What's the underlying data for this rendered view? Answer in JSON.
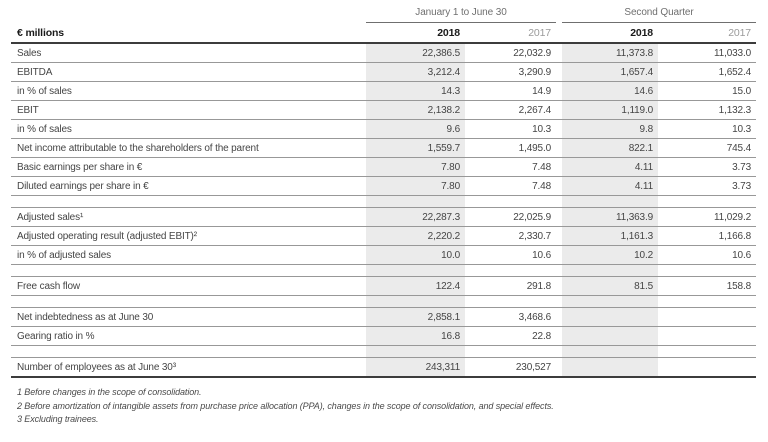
{
  "table": {
    "unit_label": "€ millions",
    "col_groups": [
      {
        "label": "January 1 to June 30"
      },
      {
        "label": "Second Quarter"
      }
    ],
    "col_headers": [
      "2018",
      "2017",
      "2018",
      "2017"
    ],
    "rows": [
      {
        "label": "Sales",
        "v": [
          "22,386.5",
          "22,032.9",
          "11,373.8",
          "11,033.0"
        ]
      },
      {
        "label": "EBITDA",
        "v": [
          "3,212.4",
          "3,290.9",
          "1,657.4",
          "1,652.4"
        ]
      },
      {
        "label": "in % of sales",
        "v": [
          "14.3",
          "14.9",
          "14.6",
          "15.0"
        ]
      },
      {
        "label": "EBIT",
        "v": [
          "2,138.2",
          "2,267.4",
          "1,119.0",
          "1,132.3"
        ]
      },
      {
        "label": "in % of sales",
        "v": [
          "9.6",
          "10.3",
          "9.8",
          "10.3"
        ]
      },
      {
        "label": "Net income attributable to the shareholders of the parent",
        "v": [
          "1,559.7",
          "1,495.0",
          "822.1",
          "745.4"
        ]
      },
      {
        "label": "Basic earnings per share in €",
        "v": [
          "7.80",
          "7.48",
          "4.11",
          "3.73"
        ]
      },
      {
        "label": "Diluted earnings per share in €",
        "v": [
          "7.80",
          "7.48",
          "4.11",
          "3.73"
        ]
      },
      {
        "label": "Adjusted sales¹",
        "v": [
          "22,287.3",
          "22,025.9",
          "11,363.9",
          "11,029.2"
        ]
      },
      {
        "label": "Adjusted operating result (adjusted EBIT)²",
        "v": [
          "2,220.2",
          "2,330.7",
          "1,161.3",
          "1,166.8"
        ]
      },
      {
        "label": "in % of adjusted sales",
        "v": [
          "10.0",
          "10.6",
          "10.2",
          "10.6"
        ]
      },
      {
        "label": "Free cash flow",
        "v": [
          "122.4",
          "291.8",
          "81.5",
          "158.8"
        ]
      },
      {
        "label": "Net indebtedness as at June 30",
        "v": [
          "2,858.1",
          "3,468.6",
          "",
          ""
        ]
      },
      {
        "label": "Gearing ratio in %",
        "v": [
          "16.8",
          "22.8",
          "",
          ""
        ]
      },
      {
        "label": "Number of employees as at June 30³",
        "v": [
          "243,311",
          "230,527",
          "",
          ""
        ]
      }
    ],
    "footnotes": [
      "1 Before changes in the scope of consolidation.",
      "2 Before amortization of intangible assets from purchase price allocation (PPA), changes in the scope of consolidation, and special effects.",
      "3 Excluding trainees."
    ]
  },
  "style": {
    "band_color": "#ebebeb",
    "rule_color": "#989898",
    "heavy_rule_color": "#3c3c3c"
  }
}
